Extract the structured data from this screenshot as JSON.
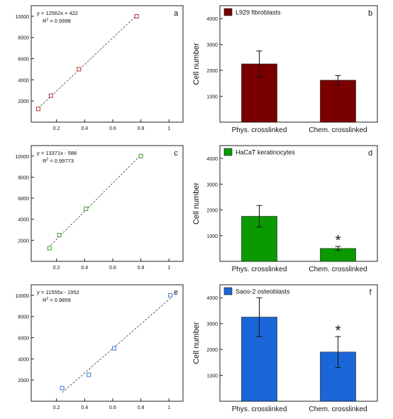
{
  "chart_data": [
    {
      "panel": "a",
      "type": "scatter",
      "equation": "y = 12562x + 422",
      "r2_prefix": "R",
      "r2_sup": "2",
      "r2_value": " = 0.9998",
      "points": [
        {
          "x": 0.07,
          "y": 1250
        },
        {
          "x": 0.16,
          "y": 2500
        },
        {
          "x": 0.36,
          "y": 5000
        },
        {
          "x": 0.77,
          "y": 10000
        }
      ],
      "fit": {
        "slope": 12562,
        "intercept": 422,
        "x_range": [
          0.07,
          0.77
        ]
      },
      "xlim": [
        0.02,
        1.1
      ],
      "ylim": [
        0,
        11000
      ],
      "xticks": [
        {
          "v": 0.2,
          "t": "0.2"
        },
        {
          "v": 0.4,
          "t": "0.4"
        },
        {
          "v": 0.6,
          "t": "0.6"
        },
        {
          "v": 0.8,
          "t": "0.8"
        },
        {
          "v": 1.0,
          "t": "1"
        }
      ],
      "yticks": [
        {
          "v": 2000,
          "t": "2000"
        },
        {
          "v": 4000,
          "t": "4000"
        },
        {
          "v": 6000,
          "t": "6000"
        },
        {
          "v": 8000,
          "t": "8000"
        },
        {
          "v": 10000,
          "t": "10000"
        }
      ],
      "color": "#b0302a"
    },
    {
      "panel": "b",
      "type": "bar",
      "legend": "L929 fibroblasts",
      "ylabel": "Cell number",
      "categories": [
        "Phys. crosslinked",
        "Chem. crosslinked"
      ],
      "values": [
        2250,
        1620
      ],
      "errors": [
        500,
        180
      ],
      "significance": [
        "",
        ""
      ],
      "ylim": [
        0,
        4500
      ],
      "yticks": [
        {
          "v": 1000,
          "t": "1000"
        },
        {
          "v": 2000,
          "t": "2000"
        },
        {
          "v": 3000,
          "t": "3000"
        },
        {
          "v": 4000,
          "t": "4000"
        }
      ],
      "color": "#7a0000"
    },
    {
      "panel": "c",
      "type": "scatter",
      "equation": "y = 13371x - 588",
      "r2_prefix": "R",
      "r2_sup": "2",
      "r2_value": " = 0.99773",
      "points": [
        {
          "x": 0.15,
          "y": 1250
        },
        {
          "x": 0.22,
          "y": 2500
        },
        {
          "x": 0.41,
          "y": 5000
        },
        {
          "x": 0.8,
          "y": 10000
        }
      ],
      "fit": {
        "slope": 13371,
        "intercept": -588,
        "x_range": [
          0.14,
          0.8
        ]
      },
      "xlim": [
        0.02,
        1.1
      ],
      "ylim": [
        0,
        11000
      ],
      "xticks": [
        {
          "v": 0.2,
          "t": "0.2"
        },
        {
          "v": 0.4,
          "t": "0.4"
        },
        {
          "v": 0.6,
          "t": "0.6"
        },
        {
          "v": 0.8,
          "t": "0.8"
        },
        {
          "v": 1.0,
          "t": "1"
        }
      ],
      "yticks": [
        {
          "v": 2000,
          "t": "2000"
        },
        {
          "v": 4000,
          "t": "4000"
        },
        {
          "v": 6000,
          "t": "6000"
        },
        {
          "v": 8000,
          "t": "8000"
        },
        {
          "v": 10000,
          "t": "10000"
        }
      ],
      "color": "#3a9a2a"
    },
    {
      "panel": "d",
      "type": "bar",
      "legend": "HaCaT keratinocytes",
      "ylabel": "Cell number",
      "categories": [
        "Phys. crosslinked",
        "Chem. crosslinked"
      ],
      "values": [
        1750,
        500
      ],
      "errors": [
        420,
        80
      ],
      "significance": [
        "",
        "*"
      ],
      "ylim": [
        0,
        4500
      ],
      "yticks": [
        {
          "v": 1000,
          "t": "1000"
        },
        {
          "v": 2000,
          "t": "2000"
        },
        {
          "v": 3000,
          "t": "3000"
        },
        {
          "v": 4000,
          "t": "4000"
        }
      ],
      "color": "#0a9a00"
    },
    {
      "panel": "e",
      "type": "scatter",
      "equation": "y = 11555x - 1952",
      "r2_prefix": "R",
      "r2_sup": "2",
      "r2_value": " = 0.9859",
      "points": [
        {
          "x": 0.24,
          "y": 1250
        },
        {
          "x": 0.43,
          "y": 2500
        },
        {
          "x": 0.61,
          "y": 5000
        },
        {
          "x": 1.01,
          "y": 10000
        }
      ],
      "fit": {
        "slope": 11555,
        "intercept": -1952,
        "x_range": [
          0.24,
          1.01
        ]
      },
      "xlim": [
        0.02,
        1.1
      ],
      "ylim": [
        0,
        11000
      ],
      "xticks": [
        {
          "v": 0.2,
          "t": "0.2"
        },
        {
          "v": 0.4,
          "t": "0.4"
        },
        {
          "v": 0.6,
          "t": "0.6"
        },
        {
          "v": 0.8,
          "t": "0.8"
        },
        {
          "v": 1.0,
          "t": "1"
        }
      ],
      "yticks": [
        {
          "v": 2000,
          "t": "2000"
        },
        {
          "v": 4000,
          "t": "4000"
        },
        {
          "v": 6000,
          "t": "6000"
        },
        {
          "v": 8000,
          "t": "8000"
        },
        {
          "v": 10000,
          "t": "10000"
        }
      ],
      "color": "#3a7ad8"
    },
    {
      "panel": "f",
      "type": "bar",
      "legend": "Saos-2 osteoblasts",
      "ylabel": "Cell number",
      "categories": [
        "Phys. crosslinked",
        "Chem. crosslinked"
      ],
      "values": [
        3250,
        1900
      ],
      "errors": [
        750,
        600
      ],
      "significance": [
        "",
        "*"
      ],
      "ylim": [
        0,
        4500
      ],
      "yticks": [
        {
          "v": 1000,
          "t": "1000"
        },
        {
          "v": 2000,
          "t": "2000"
        },
        {
          "v": 3000,
          "t": "3000"
        },
        {
          "v": 4000,
          "t": "4000"
        }
      ],
      "color": "#1a66d8"
    }
  ]
}
